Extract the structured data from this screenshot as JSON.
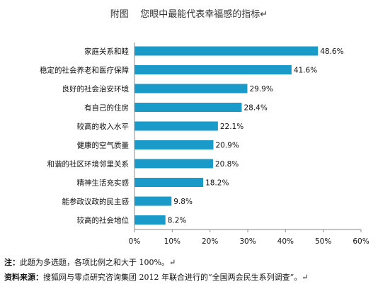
{
  "chart_data": {
    "type": "bar",
    "orientation": "horizontal",
    "title": "附图    您眼中最能代表幸福感的指标↵",
    "categories": [
      "家庭关系和睦",
      "稳定的社会养老和医疗保障",
      "良好的社会治安环境",
      "有自己的住房",
      "较高的收入水平",
      "健康的空气质量",
      "和谐的社区环境邻里关系",
      "精神生活充实感",
      "能参政议政的民主感",
      "较高的社会地位"
    ],
    "values": [
      48.6,
      41.6,
      29.9,
      28.4,
      22.1,
      20.9,
      20.8,
      18.2,
      9.8,
      8.2
    ],
    "value_labels": [
      "48.6%",
      "41.6%",
      "29.9%",
      "28.4%",
      "22.1%",
      "20.9%",
      "20.8%",
      "18.2%",
      "9.8%",
      "8.2%"
    ],
    "xlim": [
      0,
      60
    ],
    "x_ticks": [
      0,
      10,
      20,
      30,
      40,
      50,
      60
    ],
    "x_tick_labels": [
      "0%",
      "10%",
      "20%",
      "30%",
      "40%",
      "50%",
      "60%"
    ],
    "grid": false,
    "bar_color": "#1a9ac9"
  },
  "notes": {
    "note1_prefix": "注：",
    "note1_text": "此题为多选题，各项比例之和大于 100%。↵",
    "note2_prefix": "资料来源：",
    "note2_text": "搜狐网与零点研究咨询集团 2012 年联合进行的“全国两会民生系列调查”。↵"
  }
}
